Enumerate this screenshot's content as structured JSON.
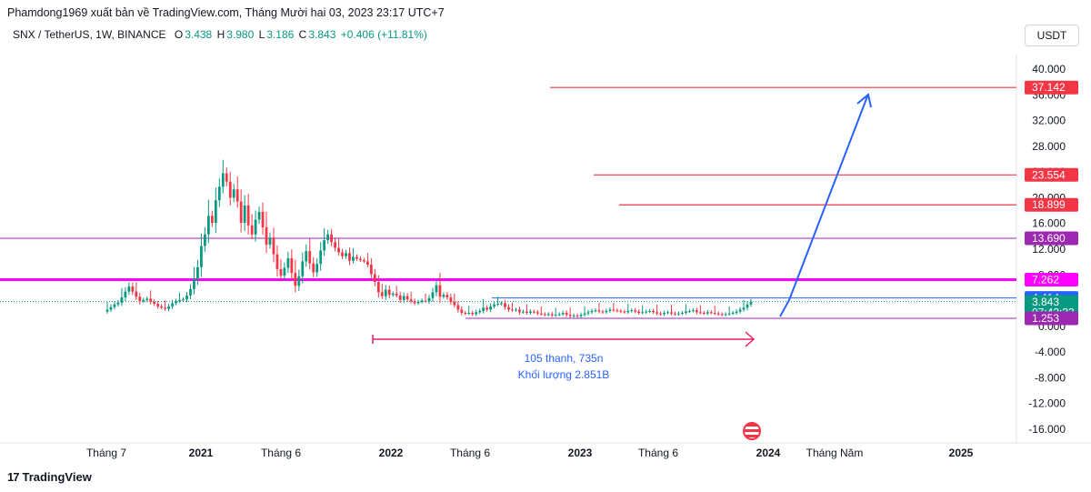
{
  "header": {
    "publisher_text": "Phamdong1969 xuất bản về TradingView.com, Tháng Mười hai 03, 2023 23:17 UTC+7"
  },
  "symbol_bar": {
    "symbol": "SNX / TetherUS, 1W, BINANCE",
    "open_label": "O",
    "open": "3.438",
    "high_label": "H",
    "high": "3.980",
    "low_label": "L",
    "low": "3.186",
    "close_label": "C",
    "close": "3.843",
    "change": "+0.406 (+11.81%)",
    "currency": "USDT"
  },
  "footer": {
    "brand": "TradingView"
  },
  "colors": {
    "up": "#089981",
    "down": "#f23645",
    "magenta": "#ff00ff",
    "purple": "#9c27b0",
    "blue": "#2962ff",
    "pink": "#f23645",
    "axis_text": "#131722"
  },
  "chart_data": {
    "type": "candlestick",
    "x_ticks": [
      "Tháng 7",
      "2021",
      "Tháng 6",
      "2022",
      "Tháng 6",
      "2023",
      "Tháng 6",
      "2024",
      "Tháng Năm",
      "2025"
    ],
    "y_ticks": [
      "40.000",
      "36.000",
      "32.000",
      "28.000",
      "24.000",
      "20.000",
      "16.000",
      "12.000",
      "8.000",
      "4.000",
      "0.000",
      "-4.000",
      "-8.000",
      "-12.000",
      "-16.000"
    ],
    "y_tick_values": [
      40,
      36,
      32,
      28,
      24,
      20,
      16,
      12,
      8,
      4,
      0,
      -4,
      -8,
      -12,
      -16
    ],
    "ylim": [
      -18,
      42
    ],
    "price_labels": [
      {
        "value": 37.142,
        "text": "37.142",
        "color": "#f23645"
      },
      {
        "value": 23.554,
        "text": "23.554",
        "color": "#f23645"
      },
      {
        "value": 18.899,
        "text": "18.899",
        "color": "#f23645"
      },
      {
        "value": 13.69,
        "text": "13.690",
        "color": "#9c27b0"
      },
      {
        "value": 7.262,
        "text": "7.262",
        "color": "#ff00ff"
      },
      {
        "value": 4.414,
        "text": "4.414",
        "color": "#2962ff"
      },
      {
        "value": 3.843,
        "text": "3.843",
        "sub": "07:42:33",
        "color": "#089981"
      },
      {
        "value": 1.253,
        "text": "1.253",
        "color": "#9c27b0"
      }
    ],
    "last_price": 3.843,
    "countdown": "07:42:33",
    "measure_annotation": {
      "bars_text": "105 thanh, 735n",
      "volume_text": "Khối lượng 2.851B"
    },
    "closes": [
      2.6,
      3.0,
      3.4,
      3.7,
      4.5,
      5.4,
      6.2,
      5.4,
      4.6,
      3.9,
      4.1,
      4.3,
      3.8,
      3.5,
      3.1,
      2.9,
      2.7,
      3.1,
      3.6,
      3.9,
      4.1,
      4.2,
      4.8,
      5.8,
      7.4,
      9.2,
      12.5,
      14.3,
      17.2,
      16.1,
      19.6,
      21.7,
      23.8,
      22.5,
      20.0,
      21.3,
      19.4,
      16.1,
      18.8,
      15.7,
      14.3,
      16.6,
      17.8,
      15.4,
      12.7,
      13.8,
      11.2,
      8.9,
      7.9,
      9.1,
      10.6,
      8.3,
      6.3,
      7.8,
      10.1,
      11.7,
      9.8,
      8.4,
      9.7,
      11.8,
      13.4,
      14.3,
      13.1,
      12.2,
      11.5,
      10.9,
      11.4,
      10.2,
      10.8,
      10.5,
      10.3,
      10.1,
      9.6,
      8.1,
      6.9,
      5.3,
      4.7,
      5.7,
      4.9,
      5.1,
      4.8,
      4.1,
      4.7,
      4.2,
      3.9,
      3.6,
      3.8,
      4.0,
      3.9,
      4.4,
      5.3,
      6.4,
      4.6,
      4.9,
      4.5,
      3.8,
      3.3,
      2.6,
      2.1,
      2.0,
      2.1,
      1.9,
      2.2,
      2.4,
      2.9,
      2.6,
      3.1,
      3.4,
      3.5,
      3.6,
      3.0,
      2.6,
      2.5,
      2.6,
      2.2,
      2.3,
      2.1,
      2.3,
      2.2,
      2.0,
      1.9,
      1.8,
      1.9,
      1.7,
      1.8,
      1.9,
      2.1,
      1.8,
      1.6,
      1.7,
      1.6,
      1.8,
      2.0,
      2.2,
      2.4,
      2.5,
      2.3,
      2.2,
      2.4,
      2.6,
      2.5,
      2.4,
      2.3,
      2.2,
      2.4,
      2.5,
      2.3,
      2.1,
      2.2,
      2.3,
      2.4,
      2.2,
      2.0,
      1.9,
      2.1,
      2.2,
      2.0,
      1.9,
      2.0,
      2.1,
      2.3,
      2.4,
      2.5,
      2.2,
      2.1,
      2.0,
      2.2,
      2.1,
      2.0,
      1.9,
      1.8,
      1.9,
      2.0,
      2.1,
      2.3,
      2.6,
      2.9,
      3.4,
      3.8
    ]
  }
}
